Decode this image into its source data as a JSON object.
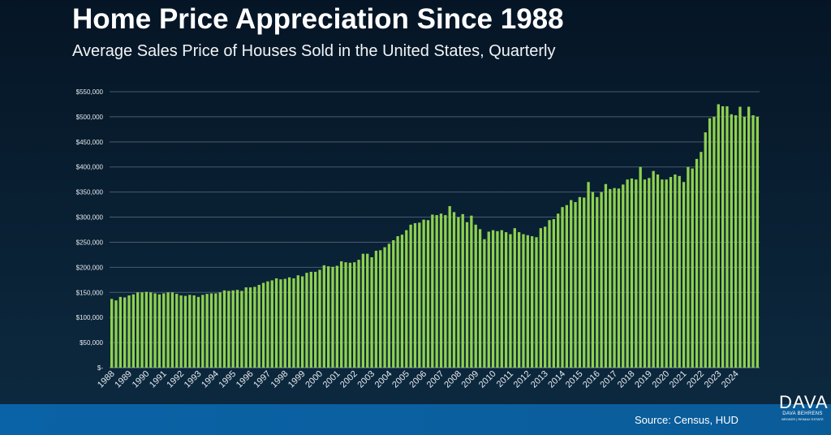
{
  "header": {
    "title": "Home Price Appreciation Since 1988",
    "subtitle": "Average Sales Price of Houses Sold in the United States, Quarterly"
  },
  "footer": {
    "source": "Source: Census, HUD"
  },
  "logo": {
    "main": "DAVA",
    "sub": "DAVA BEHRENS",
    "small": "BROKER | RE/MAX ESTATE"
  },
  "colors": {
    "bar": "#8fd14f",
    "bar_edge": "#5e9e2c",
    "gridline": "#4a5b6c",
    "axis_text": "#e6eaee",
    "footer": "#0a63a6"
  },
  "chart_data": {
    "type": "bar",
    "title": "Home Price Appreciation Since 1988",
    "subtitle": "Average Sales Price of Houses Sold in the United States, Quarterly",
    "xlabel": "",
    "ylabel": "",
    "ylim": [
      0,
      550000
    ],
    "yticks": [
      0,
      50000,
      100000,
      150000,
      200000,
      250000,
      300000,
      350000,
      400000,
      450000,
      500000,
      550000
    ],
    "ytick_labels": [
      "$-",
      "$50,000",
      "$100,000",
      "$150,000",
      "$200,000",
      "$250,000",
      "$300,000",
      "$350,000",
      "$400,000",
      "$450,000",
      "$500,000",
      "$550,000"
    ],
    "grid": true,
    "xtick_labels": [
      "1988",
      "1989",
      "1990",
      "1991",
      "1992",
      "1993",
      "1994",
      "1995",
      "1996",
      "1997",
      "1998",
      "1999",
      "2000",
      "2001",
      "2002",
      "2003",
      "2004",
      "2005",
      "2006",
      "2007",
      "2008",
      "2009",
      "2010",
      "2011",
      "2012",
      "2013",
      "2014",
      "2015",
      "2016",
      "2017",
      "2018",
      "2019",
      "2020",
      "2021",
      "2022",
      "2023",
      "2024"
    ],
    "series": [
      {
        "name": "Average Sales Price",
        "values": [
          137000,
          134000,
          141000,
          140000,
          144000,
          146000,
          150000,
          150000,
          151000,
          150000,
          148000,
          146000,
          148000,
          150000,
          150000,
          147000,
          144000,
          143000,
          145000,
          144000,
          141000,
          145000,
          147000,
          148000,
          148000,
          150000,
          154000,
          153000,
          154000,
          155000,
          153000,
          160000,
          160000,
          161000,
          165000,
          169000,
          172000,
          174000,
          178000,
          176000,
          177000,
          180000,
          178000,
          184000,
          182000,
          189000,
          191000,
          191000,
          195000,
          204000,
          202000,
          201000,
          203000,
          212000,
          210000,
          209000,
          210000,
          215000,
          227000,
          227000,
          220000,
          233000,
          234000,
          240000,
          247000,
          254000,
          262000,
          265000,
          274000,
          285000,
          288000,
          289000,
          295000,
          294000,
          305000,
          304000,
          307000,
          304000,
          322000,
          310000,
          300000,
          306000,
          290000,
          303000,
          285000,
          276000,
          256000,
          271000,
          274000,
          272000,
          274000,
          270000,
          266000,
          278000,
          270000,
          266000,
          264000,
          262000,
          260000,
          278000,
          281000,
          294000,
          296000,
          307000,
          320000,
          324000,
          334000,
          330000,
          340000,
          339000,
          370000,
          350000,
          340000,
          350000,
          366000,
          356000,
          358000,
          357000,
          365000,
          375000,
          377000,
          375000,
          400000,
          375000,
          378000,
          392000,
          385000,
          375000,
          375000,
          380000,
          385000,
          382000,
          370000,
          400000,
          397000,
          416000,
          430000,
          469000,
          497000,
          500000,
          525000,
          521000,
          521000,
          505000,
          503000,
          520000,
          500000,
          520000,
          503000,
          500000
        ]
      }
    ]
  }
}
